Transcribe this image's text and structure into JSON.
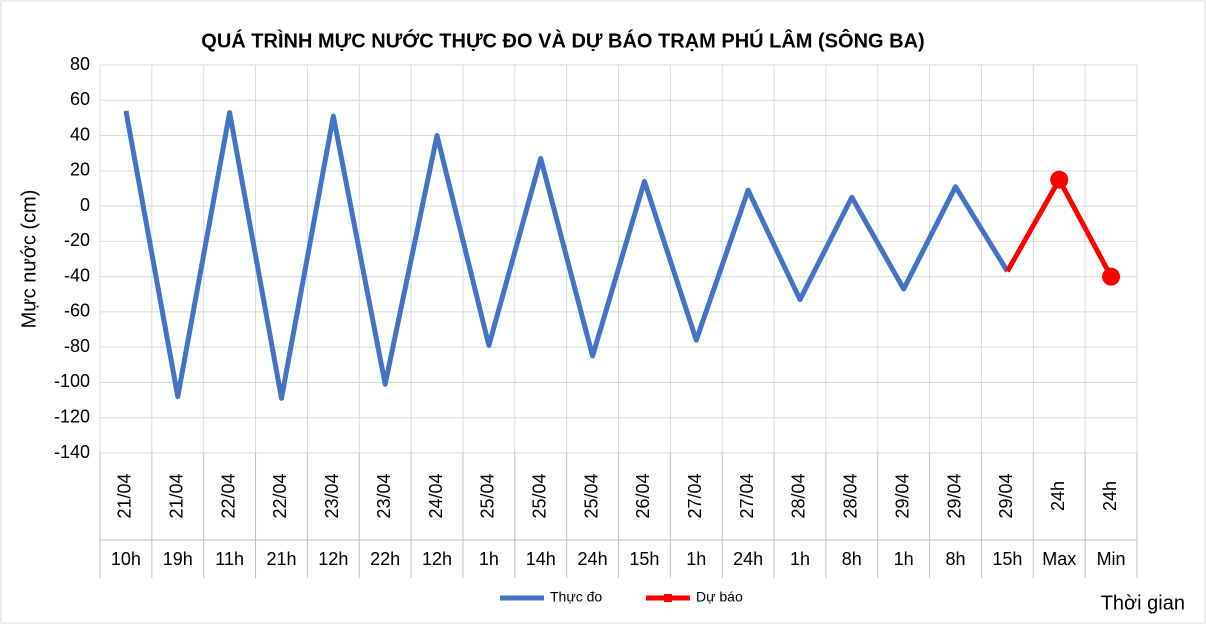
{
  "chart_data": {
    "type": "line",
    "title": "QUÁ TRÌNH MỰC NƯỚC THỰC ĐO VÀ DỰ BÁO TRẠM PHÚ LÂM (SÔNG BA)",
    "y_label": "Mực nước (cm)",
    "x_label": "Thời gian",
    "category_groups": [
      "21/04",
      "21/04",
      "22/04",
      "22/04",
      "23/04",
      "23/04",
      "24/04",
      "25/04",
      "25/04",
      "25/04",
      "26/04",
      "27/04",
      "27/04",
      "28/04",
      "28/04",
      "29/04",
      "29/04",
      "29/04",
      "24h",
      "24h"
    ],
    "categories": [
      "10h",
      "19h",
      "11h",
      "21h",
      "12h",
      "22h",
      "12h",
      "1h",
      "14h",
      "24h",
      "15h",
      "1h",
      "24h",
      "1h",
      "8h",
      "1h",
      "8h",
      "15h",
      "Max",
      "Min"
    ],
    "series": [
      {
        "name": "Thực đo",
        "color": "#4472c4",
        "values": [
          54,
          -108,
          53,
          -109,
          51,
          -101,
          40,
          -79,
          27,
          -85,
          14,
          -76,
          9,
          -53,
          5,
          -47,
          11,
          -37,
          null,
          null
        ]
      },
      {
        "name": "Dự báo",
        "color": "#ff0000",
        "values": [
          null,
          null,
          null,
          null,
          null,
          null,
          null,
          null,
          null,
          null,
          null,
          null,
          null,
          null,
          null,
          null,
          null,
          -37,
          15,
          -40
        ]
      }
    ],
    "ylim": [
      -140,
      80
    ],
    "yticks": [
      -140,
      -120,
      -100,
      -80,
      -60,
      -40,
      -20,
      0,
      20,
      40,
      60,
      80
    ],
    "grid": true,
    "legend": "bottom"
  }
}
